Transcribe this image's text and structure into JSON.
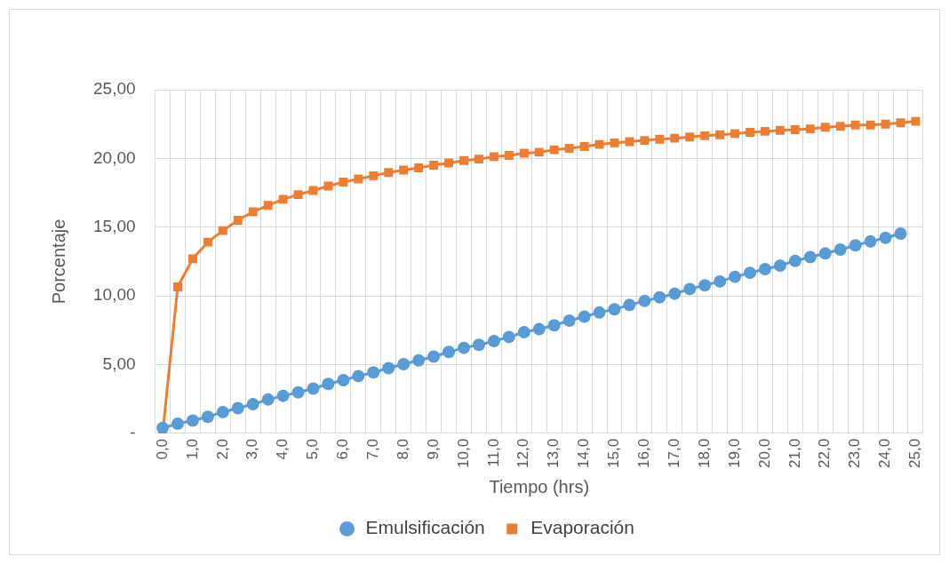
{
  "chart_data": {
    "type": "line",
    "xlabel": "Tiempo (hrs)",
    "ylabel": "Porcentaje",
    "categories": [
      "0,0",
      null,
      "1,0",
      null,
      "2,0",
      null,
      "3,0",
      null,
      "4,0",
      null,
      "5,0",
      null,
      "6,0",
      null,
      "7,0",
      null,
      "8,0",
      null,
      "9,0",
      null,
      "10,0",
      null,
      "11,0",
      null,
      "12,0",
      null,
      "13,0",
      null,
      "14,0",
      null,
      "15,0",
      null,
      "16,0",
      null,
      "17,0",
      null,
      "18,0",
      null,
      "19,0",
      null,
      "20,0",
      null,
      "21,0",
      null,
      "22,0",
      null,
      "23,0",
      null,
      "24,0",
      null,
      "25,0"
    ],
    "series": [
      {
        "name": "Emulsificación",
        "color": "#5b9bd5",
        "marker": "circle",
        "values": [
          0.4,
          0.7,
          0.93,
          1.21,
          1.55,
          1.84,
          2.12,
          2.46,
          2.73,
          2.98,
          3.26,
          3.6,
          3.87,
          4.17,
          4.44,
          4.74,
          5.03,
          5.31,
          5.58,
          5.92,
          6.22,
          6.44,
          6.71,
          7.01,
          7.36,
          7.58,
          7.86,
          8.2,
          8.49,
          8.79,
          9.02,
          9.34,
          9.63,
          9.9,
          10.16,
          10.5,
          10.77,
          11.05,
          11.39,
          11.68,
          11.95,
          12.21,
          12.55,
          12.82,
          13.09,
          13.37,
          13.68,
          13.96,
          14.23,
          14.53,
          null
        ]
      },
      {
        "name": "Evaporación",
        "color": "#ed7d31",
        "marker": "square",
        "values": [
          0,
          10.66,
          12.7,
          13.91,
          14.75,
          15.5,
          16.12,
          16.58,
          17.03,
          17.37,
          17.67,
          17.99,
          18.28,
          18.51,
          18.74,
          18.97,
          19.15,
          19.31,
          19.51,
          19.67,
          19.85,
          19.95,
          20.13,
          20.22,
          20.38,
          20.45,
          20.63,
          20.74,
          20.86,
          21.02,
          21.13,
          21.22,
          21.31,
          21.4,
          21.47,
          21.56,
          21.65,
          21.72,
          21.81,
          21.9,
          21.97,
          22.04,
          22.09,
          22.15,
          22.27,
          22.34,
          22.43,
          22.43,
          22.5,
          22.59,
          22.7
        ]
      }
    ],
    "ylim": [
      0,
      25
    ],
    "yticks": [
      {
        "value": 0,
        "label": "-"
      },
      {
        "value": 5,
        "label": "5,00"
      },
      {
        "value": 10,
        "label": "10,00"
      },
      {
        "value": 15,
        "label": "15,00"
      },
      {
        "value": 20,
        "label": "20,00"
      },
      {
        "value": 25,
        "label": "25,00"
      }
    ],
    "grid": true,
    "legend": "bottom",
    "line_style": "solid"
  }
}
